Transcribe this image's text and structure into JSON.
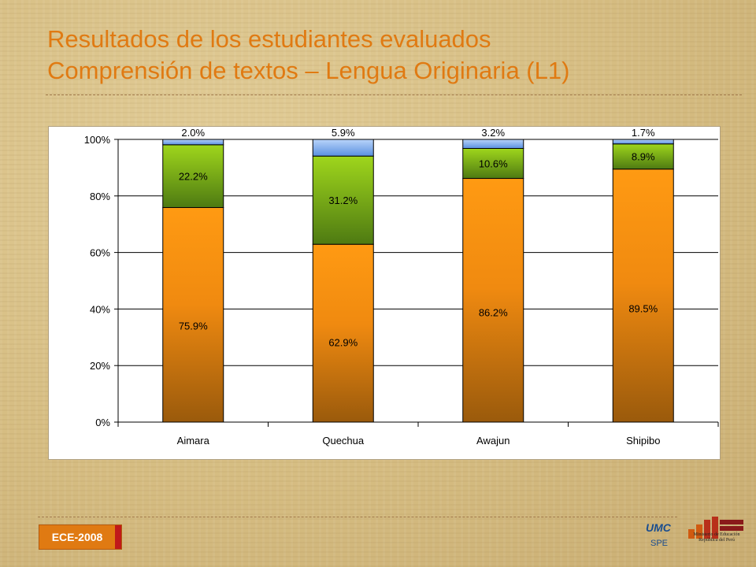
{
  "slide": {
    "title_line1": "Resultados de los estudiantes evaluados",
    "title_line2": "Comprensión de textos – Lengua Originaria (L1)",
    "badge": "ECE-2008",
    "logo_umc_mark": "UMC",
    "logo_umc_sub": "SPE",
    "logo_minedu_line1": "Ministerio de Educación",
    "logo_minedu_line2": "República del Perú",
    "title_color": "#e07a12",
    "badge_color": "#e07a12"
  },
  "chart_data": {
    "type": "bar",
    "stacked": true,
    "percent": true,
    "categories": [
      "Aimara",
      "Quechua",
      "Awajun",
      "Shipibo"
    ],
    "series": [
      {
        "values": [
          75.9,
          62.9,
          86.2,
          89.5
        ],
        "labels": [
          "75.9%",
          "62.9%",
          "86.2%",
          "89.5%"
        ],
        "color": "#f7941d"
      },
      {
        "values": [
          22.2,
          31.2,
          10.6,
          8.9
        ],
        "labels": [
          "22.2%",
          "31.2%",
          "10.6%",
          "8.9%"
        ],
        "color": "#8dc63f"
      },
      {
        "values": [
          2.0,
          5.9,
          3.2,
          1.7
        ],
        "labels": [
          "2.0%",
          "5.9%",
          "3.2%",
          "1.7%"
        ],
        "color": "#7fb2f0"
      }
    ],
    "yticks": [
      "0%",
      "20%",
      "40%",
      "60%",
      "80%",
      "100%"
    ],
    "ylim": [
      0,
      100
    ],
    "grid": true,
    "legend": false,
    "title": "",
    "xlabel": "",
    "ylabel": ""
  }
}
